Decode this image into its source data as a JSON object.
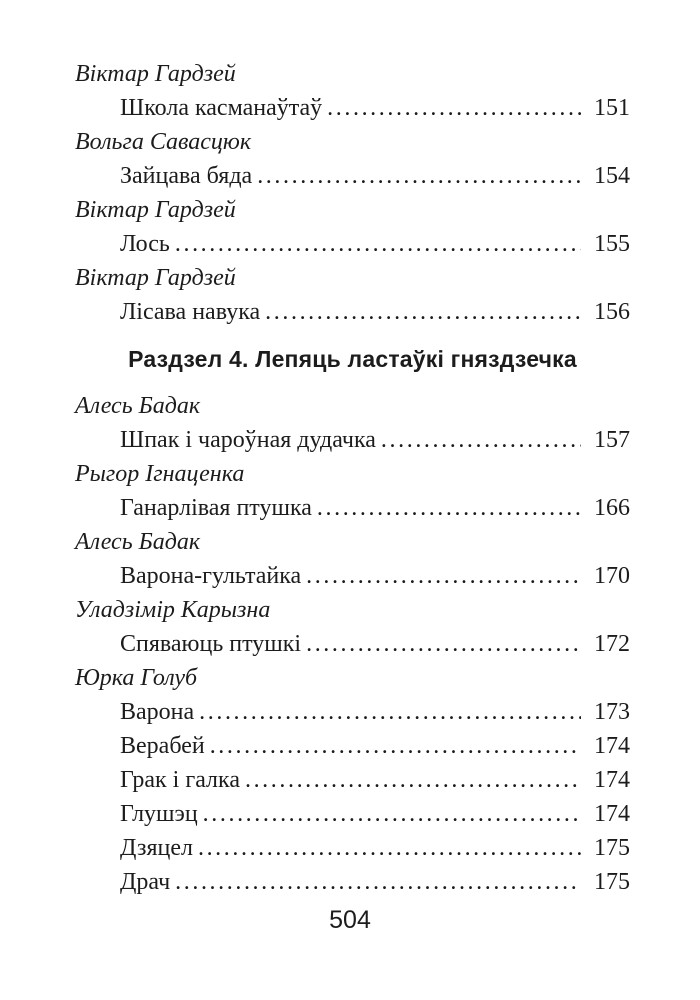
{
  "page": {
    "footer_page_number": "504"
  },
  "toc": {
    "sections": [
      {
        "heading": null,
        "entries": [
          {
            "author": "Віктар Гардзей",
            "titles": [
              {
                "title": "Школа касманаўтаў",
                "page": "151"
              }
            ]
          },
          {
            "author": "Вольга Савасцюк",
            "titles": [
              {
                "title": "Зайцава бяда",
                "page": "154"
              }
            ]
          },
          {
            "author": "Віктар Гардзей",
            "titles": [
              {
                "title": "Лось",
                "page": "155"
              }
            ]
          },
          {
            "author": "Віктар Гардзей",
            "titles": [
              {
                "title": "Лісава навука",
                "page": "156"
              }
            ]
          }
        ]
      },
      {
        "heading": "Раздзел 4. Лепяць ластаўкі гняздзечка",
        "entries": [
          {
            "author": "Алесь Бадак",
            "titles": [
              {
                "title": "Шпак і чароўная дудачка",
                "page": "157"
              }
            ]
          },
          {
            "author": "Рыгор Ігнаценка",
            "titles": [
              {
                "title": "Ганарлівая птушка",
                "page": "166"
              }
            ]
          },
          {
            "author": "Алесь Бадак",
            "titles": [
              {
                "title": "Варона-гультайка",
                "page": "170"
              }
            ]
          },
          {
            "author": "Уладзімір Карызна",
            "titles": [
              {
                "title": "Спяваюць птушкі",
                "page": "172"
              }
            ]
          },
          {
            "author": "Юрка Голуб",
            "titles": [
              {
                "title": "Варона",
                "page": "173"
              },
              {
                "title": "Верабей",
                "page": "174"
              },
              {
                "title": "Грак і галка",
                "page": "174"
              },
              {
                "title": "Глушэц",
                "page": "174"
              },
              {
                "title": "Дзяцел",
                "page": "175"
              },
              {
                "title": "Драч",
                "page": "175"
              }
            ]
          }
        ]
      }
    ]
  }
}
